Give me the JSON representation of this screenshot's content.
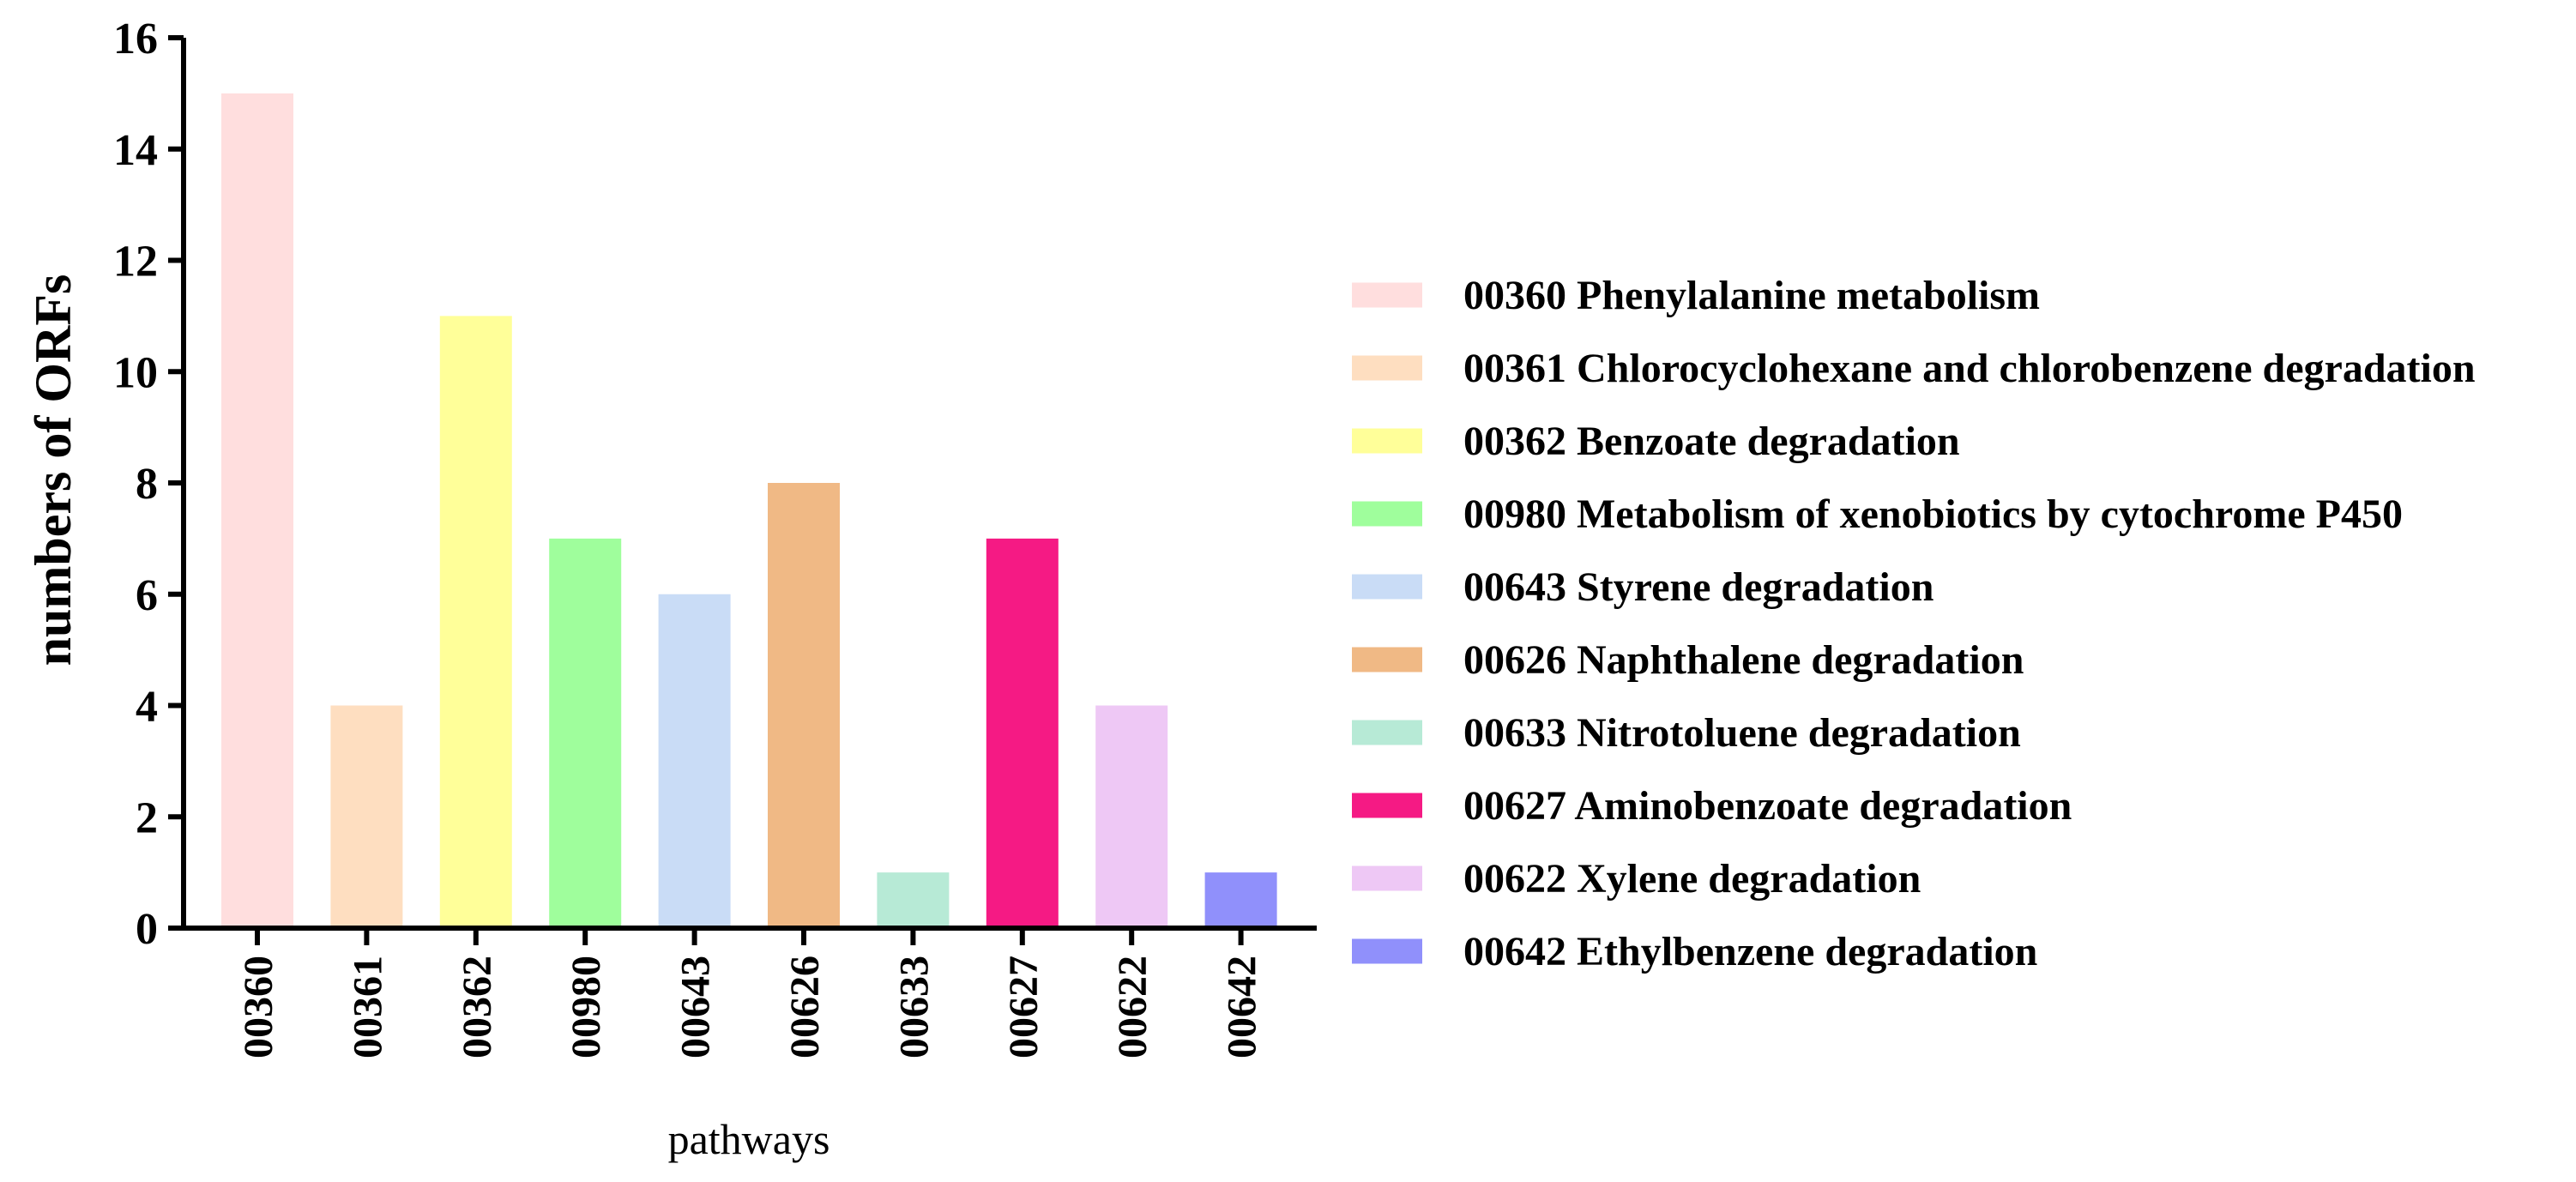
{
  "chart_data": {
    "type": "bar",
    "title": "",
    "xlabel": "pathways",
    "ylabel": "numbers of ORFs",
    "ylim": [
      0,
      16
    ],
    "yticks": [
      0,
      2,
      4,
      6,
      8,
      10,
      12,
      14,
      16
    ],
    "grid": false,
    "legend_position": "right",
    "categories": [
      "00360",
      "00361",
      "00362",
      "00980",
      "00643",
      "00626",
      "00633",
      "00627",
      "00622",
      "00642"
    ],
    "values": [
      15,
      4,
      11,
      7,
      6,
      8,
      1,
      7,
      4,
      1
    ],
    "colors": [
      "#ffdede",
      "#fedec0",
      "#ffff99",
      "#9ffe9c",
      "#c9dcf6",
      "#f0b985",
      "#b7ead6",
      "#f51a84",
      "#eec8f5",
      "#9090fb"
    ],
    "legend": [
      "00360 Phenylalanine metabolism",
      "00361 Chlorocyclohexane and chlorobenzene degradation",
      "00362 Benzoate degradation",
      "00980 Metabolism of xenobiotics by cytochrome P450",
      "00643 Styrene degradation",
      "00626 Naphthalene degradation",
      "00633 Nitrotoluene degradation",
      "00627 Aminobenzoate degradation",
      "00622 Xylene degradation",
      "00642 Ethylbenzene degradation"
    ]
  }
}
